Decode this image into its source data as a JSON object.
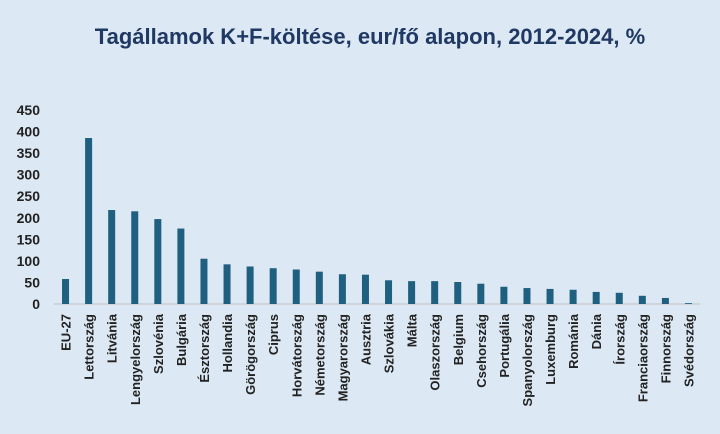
{
  "chart_data": {
    "type": "bar",
    "title": "Tagállamok K+F-költése, eur/fő alapon, 2012-2024, %",
    "xlabel": "",
    "ylabel": "",
    "ylim": [
      0,
      450
    ],
    "yticks": [
      0,
      50,
      100,
      150,
      200,
      250,
      300,
      350,
      400,
      450
    ],
    "grid": false,
    "legend": "none",
    "bar_color": "#1f5f7f",
    "categories": [
      "EU-27",
      "Lettország",
      "Litvánia",
      "Lengyelország",
      "Szlovénia",
      "Bulgária",
      "Észtország",
      "Hollandia",
      "Görögország",
      "Ciprus",
      "Horvátország",
      "Németország",
      "Magyarország",
      "Ausztria",
      "Szlovákia",
      "Málta",
      "Olaszország",
      "Belgium",
      "Csehország",
      "Portugália",
      "Spanyolország",
      "Luxemburg",
      "Románia",
      "Dánia",
      "Írország",
      "Franciaország",
      "Finnország",
      "Svédország"
    ],
    "values": [
      58,
      385,
      218,
      215,
      197,
      175,
      105,
      92,
      87,
      83,
      80,
      75,
      69,
      68,
      55,
      53,
      53,
      51,
      47,
      40,
      37,
      35,
      33,
      28,
      26,
      19,
      14,
      2
    ]
  }
}
